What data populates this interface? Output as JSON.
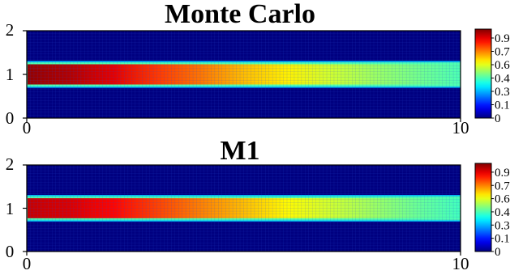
{
  "chart_data": [
    {
      "type": "heatmap",
      "title": "Monte Carlo",
      "xlim": [
        0,
        10
      ],
      "ylim": [
        0,
        2
      ],
      "x_ticks": [
        "0",
        "10"
      ],
      "y_ticks": [
        "0",
        "1",
        "2"
      ],
      "colorbar_ticks": [
        "0",
        "0.15",
        "0.3",
        "0.45",
        "0.6",
        "0.75",
        "0.9"
      ],
      "colorbar_range": [
        0,
        1
      ],
      "colormap": "jet",
      "background_value": 0.0,
      "band": {
        "y_min": 0.75,
        "y_max": 1.25
      },
      "profile_along_x": {
        "x": [
          0,
          1,
          2,
          3,
          4,
          5,
          6,
          7,
          8,
          9,
          10
        ],
        "value": [
          0.98,
          0.95,
          0.9,
          0.82,
          0.76,
          0.69,
          0.64,
          0.58,
          0.53,
          0.49,
          0.45
        ]
      }
    },
    {
      "type": "heatmap",
      "title": "M1",
      "xlim": [
        0,
        10
      ],
      "ylim": [
        0,
        2
      ],
      "x_ticks": [
        "0",
        "10"
      ],
      "y_ticks": [
        "0",
        "1",
        "2"
      ],
      "colorbar_ticks": [
        "0",
        "0.15",
        "0.3",
        "0.45",
        "0.6",
        "0.75",
        "0.9"
      ],
      "colorbar_range": [
        0,
        1
      ],
      "colormap": "jet",
      "background_value": 0.0,
      "band": {
        "y_min": 0.75,
        "y_max": 1.25
      },
      "profile_along_x": {
        "x": [
          0,
          1,
          2,
          3,
          4,
          5,
          6,
          7,
          8,
          9,
          10
        ],
        "value": [
          0.93,
          0.91,
          0.87,
          0.81,
          0.75,
          0.69,
          0.63,
          0.58,
          0.53,
          0.48,
          0.44
        ]
      }
    }
  ],
  "colors": {
    "axis": "#000000",
    "grid_line": "#2a50d4"
  }
}
